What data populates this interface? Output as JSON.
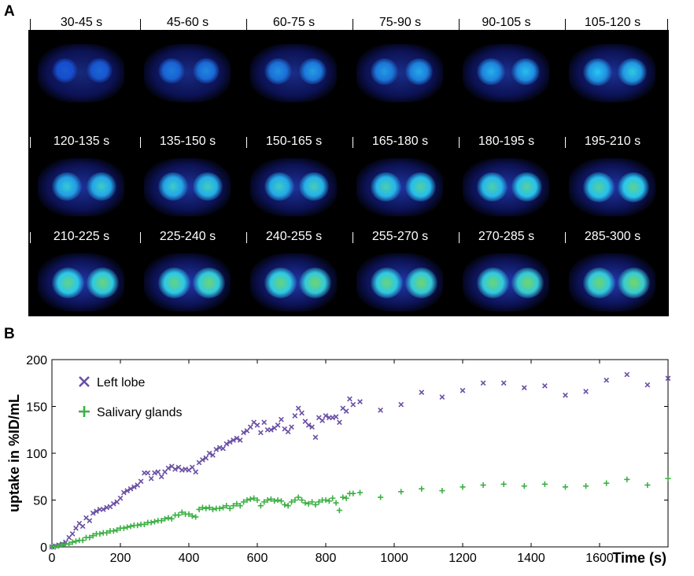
{
  "panel_a": {
    "letter": "A",
    "frames": [
      "30-45 s",
      "45-60 s",
      "60-75 s",
      "75-90 s",
      "90-105 s",
      "105-120 s",
      "120-135 s",
      "135-150 s",
      "150-165 s",
      "165-180 s",
      "180-195 s",
      "195-210 s",
      "210-225 s",
      "225-240 s",
      "240-255 s",
      "255-270 s",
      "270-285 s",
      "285-300 s"
    ],
    "intensity": [
      0.1,
      0.22,
      0.3,
      0.34,
      0.42,
      0.5,
      0.58,
      0.62,
      0.64,
      0.72,
      0.74,
      0.78,
      0.86,
      0.88,
      0.9,
      0.9,
      0.92,
      0.94
    ]
  },
  "panel_b": {
    "letter": "B"
  },
  "chart_data": {
    "type": "scatter",
    "title": "",
    "xlabel": "Time (s)",
    "ylabel": "uptake in %ID/mL",
    "xlim": [
      0,
      1800
    ],
    "ylim": [
      0,
      200
    ],
    "xticks": [
      0,
      200,
      400,
      600,
      800,
      1000,
      1200,
      1400,
      1600
    ],
    "yticks": [
      0,
      50,
      100,
      150,
      200
    ],
    "grid": false,
    "legend_position": "top-left",
    "series": [
      {
        "name": "Left lobe",
        "marker": "x",
        "color": "#6a4fa3",
        "points": [
          [
            0,
            0
          ],
          [
            10,
            1
          ],
          [
            20,
            2
          ],
          [
            30,
            3
          ],
          [
            40,
            5
          ],
          [
            50,
            10
          ],
          [
            60,
            14
          ],
          [
            70,
            20
          ],
          [
            80,
            25
          ],
          [
            90,
            22
          ],
          [
            100,
            31
          ],
          [
            110,
            28
          ],
          [
            120,
            36
          ],
          [
            130,
            38
          ],
          [
            140,
            40
          ],
          [
            150,
            40
          ],
          [
            160,
            42
          ],
          [
            170,
            43
          ],
          [
            180,
            46
          ],
          [
            190,
            48
          ],
          [
            200,
            52
          ],
          [
            210,
            58
          ],
          [
            220,
            60
          ],
          [
            230,
            62
          ],
          [
            240,
            64
          ],
          [
            250,
            66
          ],
          [
            260,
            70
          ],
          [
            270,
            79
          ],
          [
            280,
            79
          ],
          [
            290,
            73
          ],
          [
            300,
            79
          ],
          [
            310,
            80
          ],
          [
            320,
            75
          ],
          [
            330,
            80
          ],
          [
            340,
            84
          ],
          [
            350,
            86
          ],
          [
            360,
            83
          ],
          [
            370,
            85
          ],
          [
            380,
            82
          ],
          [
            390,
            83
          ],
          [
            400,
            82
          ],
          [
            410,
            85
          ],
          [
            420,
            80
          ],
          [
            430,
            90
          ],
          [
            440,
            93
          ],
          [
            450,
            95
          ],
          [
            460,
            100
          ],
          [
            470,
            98
          ],
          [
            480,
            104
          ],
          [
            490,
            106
          ],
          [
            500,
            105
          ],
          [
            510,
            110
          ],
          [
            520,
            112
          ],
          [
            530,
            114
          ],
          [
            540,
            116
          ],
          [
            550,
            114
          ],
          [
            560,
            122
          ],
          [
            570,
            124
          ],
          [
            580,
            128
          ],
          [
            590,
            133
          ],
          [
            600,
            130
          ],
          [
            610,
            122
          ],
          [
            620,
            133
          ],
          [
            630,
            125
          ],
          [
            640,
            125
          ],
          [
            650,
            127
          ],
          [
            660,
            130
          ],
          [
            670,
            136
          ],
          [
            680,
            126
          ],
          [
            690,
            123
          ],
          [
            700,
            128
          ],
          [
            710,
            140
          ],
          [
            720,
            148
          ],
          [
            730,
            143
          ],
          [
            740,
            134
          ],
          [
            750,
            130
          ],
          [
            760,
            128
          ],
          [
            770,
            117
          ],
          [
            780,
            138
          ],
          [
            790,
            135
          ],
          [
            800,
            140
          ],
          [
            810,
            138
          ],
          [
            820,
            138
          ],
          [
            830,
            139
          ],
          [
            840,
            133
          ],
          [
            850,
            148
          ],
          [
            860,
            145
          ],
          [
            870,
            158
          ],
          [
            880,
            152
          ],
          [
            900,
            155
          ],
          [
            960,
            146
          ],
          [
            1020,
            152
          ],
          [
            1080,
            165
          ],
          [
            1140,
            160
          ],
          [
            1200,
            167
          ],
          [
            1260,
            175
          ],
          [
            1320,
            175
          ],
          [
            1380,
            170
          ],
          [
            1440,
            172
          ],
          [
            1500,
            162
          ],
          [
            1560,
            166
          ],
          [
            1620,
            178
          ],
          [
            1680,
            184
          ],
          [
            1740,
            173
          ],
          [
            1800,
            180
          ]
        ]
      },
      {
        "name": "Salivary glands",
        "marker": "+",
        "color": "#3cb044",
        "points": [
          [
            0,
            0
          ],
          [
            10,
            0
          ],
          [
            20,
            1
          ],
          [
            30,
            2
          ],
          [
            40,
            3
          ],
          [
            50,
            3
          ],
          [
            60,
            5
          ],
          [
            70,
            6
          ],
          [
            80,
            7
          ],
          [
            90,
            7
          ],
          [
            100,
            10
          ],
          [
            110,
            10
          ],
          [
            120,
            12
          ],
          [
            130,
            14
          ],
          [
            140,
            14
          ],
          [
            150,
            15
          ],
          [
            160,
            15
          ],
          [
            170,
            17
          ],
          [
            180,
            17
          ],
          [
            190,
            18
          ],
          [
            200,
            20
          ],
          [
            210,
            20
          ],
          [
            220,
            21
          ],
          [
            230,
            22
          ],
          [
            240,
            23
          ],
          [
            250,
            23
          ],
          [
            260,
            24
          ],
          [
            270,
            24
          ],
          [
            280,
            26
          ],
          [
            290,
            26
          ],
          [
            300,
            27
          ],
          [
            310,
            28
          ],
          [
            320,
            28
          ],
          [
            330,
            30
          ],
          [
            340,
            31
          ],
          [
            350,
            30
          ],
          [
            360,
            34
          ],
          [
            370,
            34
          ],
          [
            380,
            37
          ],
          [
            390,
            35
          ],
          [
            400,
            35
          ],
          [
            410,
            33
          ],
          [
            420,
            32
          ],
          [
            430,
            40
          ],
          [
            440,
            42
          ],
          [
            450,
            41
          ],
          [
            460,
            42
          ],
          [
            470,
            40
          ],
          [
            480,
            41
          ],
          [
            490,
            41
          ],
          [
            500,
            42
          ],
          [
            510,
            44
          ],
          [
            520,
            41
          ],
          [
            530,
            44
          ],
          [
            540,
            46
          ],
          [
            550,
            44
          ],
          [
            560,
            48
          ],
          [
            570,
            50
          ],
          [
            580,
            51
          ],
          [
            590,
            52
          ],
          [
            600,
            50
          ],
          [
            610,
            44
          ],
          [
            620,
            48
          ],
          [
            630,
            50
          ],
          [
            640,
            51
          ],
          [
            650,
            49
          ],
          [
            660,
            50
          ],
          [
            670,
            49
          ],
          [
            680,
            45
          ],
          [
            690,
            44
          ],
          [
            700,
            48
          ],
          [
            710,
            50
          ],
          [
            720,
            53
          ],
          [
            730,
            50
          ],
          [
            740,
            47
          ],
          [
            750,
            46
          ],
          [
            760,
            48
          ],
          [
            770,
            45
          ],
          [
            780,
            48
          ],
          [
            790,
            50
          ],
          [
            800,
            50
          ],
          [
            810,
            49
          ],
          [
            820,
            52
          ],
          [
            830,
            47
          ],
          [
            840,
            39
          ],
          [
            850,
            53
          ],
          [
            860,
            52
          ],
          [
            870,
            57
          ],
          [
            880,
            57
          ],
          [
            900,
            58
          ],
          [
            960,
            53
          ],
          [
            1020,
            59
          ],
          [
            1080,
            62
          ],
          [
            1140,
            60
          ],
          [
            1200,
            64
          ],
          [
            1260,
            66
          ],
          [
            1320,
            67
          ],
          [
            1380,
            65
          ],
          [
            1440,
            67
          ],
          [
            1500,
            64
          ],
          [
            1560,
            65
          ],
          [
            1620,
            68
          ],
          [
            1680,
            72
          ],
          [
            1740,
            66
          ],
          [
            1800,
            73
          ]
        ]
      }
    ]
  }
}
